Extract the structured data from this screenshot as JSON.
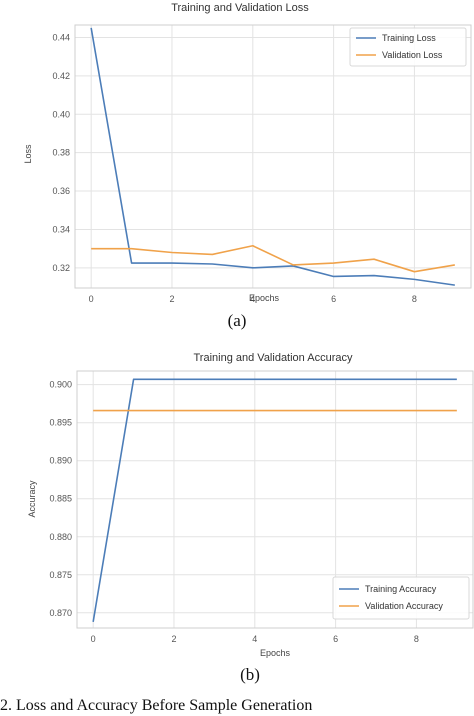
{
  "colors": {
    "training": "#4c7db8",
    "validation": "#f0a24a",
    "grid": "#e3e3e3",
    "frame": "#cfcfcf"
  },
  "chart_data": [
    {
      "type": "line",
      "title": "Training and Validation Loss",
      "xlabel": "Epochs",
      "ylabel": "Loss",
      "x": [
        0,
        1,
        2,
        3,
        4,
        5,
        6,
        7,
        8,
        9
      ],
      "xlim": [
        -0.4,
        9.4
      ],
      "ylim": [
        0.3095,
        0.4465
      ],
      "xticks": [
        0,
        2,
        4,
        6,
        8
      ],
      "yticks": [
        0.32,
        0.34,
        0.36,
        0.38,
        0.4,
        0.42,
        0.44
      ],
      "xtick_labels": [
        "0",
        "2",
        "4",
        "6",
        "8"
      ],
      "ytick_labels": [
        "0.32",
        "0.34",
        "0.36",
        "0.38",
        "0.40",
        "0.42",
        "0.44"
      ],
      "grid": true,
      "legend_position": "top-right",
      "series": [
        {
          "name": "Training Loss",
          "values": [
            0.445,
            0.3225,
            0.3225,
            0.322,
            0.32,
            0.321,
            0.3155,
            0.316,
            0.314,
            0.311
          ]
        },
        {
          "name": "Validation Loss",
          "values": [
            0.33,
            0.33,
            0.328,
            0.327,
            0.3315,
            0.3215,
            0.3225,
            0.3245,
            0.318,
            0.3215
          ]
        }
      ]
    },
    {
      "type": "line",
      "title": "Training and Validation Accuracy",
      "xlabel": "Epochs",
      "ylabel": "Accuracy",
      "x": [
        0,
        1,
        2,
        3,
        4,
        5,
        6,
        7,
        8,
        9
      ],
      "xlim": [
        -0.4,
        9.4
      ],
      "ylim": [
        0.868,
        0.9018
      ],
      "xticks": [
        0,
        2,
        4,
        6,
        8
      ],
      "yticks": [
        0.87,
        0.875,
        0.88,
        0.885,
        0.89,
        0.895,
        0.9
      ],
      "xtick_labels": [
        "0",
        "2",
        "4",
        "6",
        "8"
      ],
      "ytick_labels": [
        "0.870",
        "0.875",
        "0.880",
        "0.885",
        "0.890",
        "0.895",
        "0.900"
      ],
      "grid": true,
      "legend_position": "bottom-right",
      "series": [
        {
          "name": "Training Accuracy",
          "values": [
            0.8688,
            0.9007,
            0.9007,
            0.9007,
            0.9007,
            0.9007,
            0.9007,
            0.9007,
            0.9007,
            0.9007
          ]
        },
        {
          "name": "Validation Accuracy",
          "values": [
            0.8966,
            0.8966,
            0.8966,
            0.8966,
            0.8966,
            0.8966,
            0.8966,
            0.8966,
            0.8966,
            0.8966
          ]
        }
      ]
    }
  ],
  "captions": {
    "a": "(a)",
    "b": "(b)",
    "figure": "2.  Loss and Accuracy Before Sample Generation"
  }
}
